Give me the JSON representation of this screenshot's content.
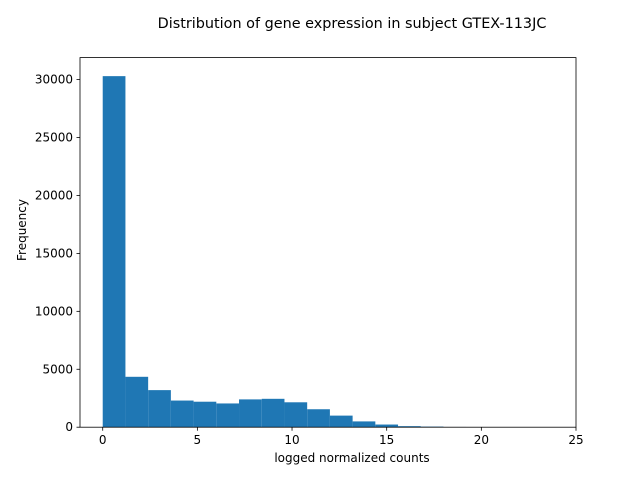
{
  "chart_data": {
    "type": "bar",
    "title": "Distribution of gene expression in subject GTEX-113JC",
    "xlabel": "logged normalized counts",
    "ylabel": "Frequency",
    "xlim": [
      -1.2,
      25.0
    ],
    "ylim": [
      0,
      31900
    ],
    "x_ticks": [
      0,
      5,
      10,
      15,
      20,
      25
    ],
    "y_ticks": [
      0,
      5000,
      10000,
      15000,
      20000,
      25000,
      30000
    ],
    "bin_edges": [
      0,
      1.2,
      2.4,
      3.6,
      4.8,
      6.0,
      7.2,
      8.4,
      9.6,
      10.8,
      12.0,
      13.2,
      14.4,
      15.6,
      16.8,
      18.0,
      19.2,
      20.4,
      21.6,
      22.8,
      24.0
    ],
    "values": [
      30300,
      4350,
      3200,
      2300,
      2200,
      2050,
      2400,
      2450,
      2150,
      1550,
      1000,
      500,
      230,
      90,
      50,
      20,
      10,
      8,
      5,
      3
    ],
    "bar_color": "#1f77b4",
    "grid": false,
    "legend": "none"
  }
}
